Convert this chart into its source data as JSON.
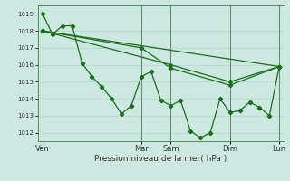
{
  "background_color": "#cce8e0",
  "grid_color": "#b0d8cc",
  "line_color": "#1a6e1a",
  "marker_color": "#1a6e1a",
  "xlabel": "Pression niveau de la mer( hPa )",
  "ylim": [
    1011.5,
    1019.5
  ],
  "yticks": [
    1012,
    1013,
    1014,
    1015,
    1016,
    1017,
    1018,
    1019
  ],
  "xtick_labels": [
    "Ven",
    "Mar",
    "Sam",
    "Dim",
    "Lun"
  ],
  "xtick_positions": [
    0,
    10,
    13,
    19,
    24
  ],
  "total_points": 25,
  "line1_x": [
    0,
    1,
    2,
    3,
    4,
    5,
    6,
    7,
    8,
    9,
    10,
    11,
    12,
    13,
    14,
    15,
    16,
    17,
    18,
    19,
    20,
    21,
    22,
    23,
    24
  ],
  "line1_y": [
    1019.0,
    1017.8,
    1018.3,
    1018.3,
    1016.1,
    1015.3,
    1014.7,
    1014.0,
    1013.1,
    1013.6,
    1015.3,
    1015.6,
    1013.9,
    1013.6,
    1013.9,
    1012.1,
    1011.7,
    1012.0,
    1014.0,
    1013.2,
    1013.3,
    1013.8,
    1013.5,
    1013.0,
    1015.9
  ],
  "line2_x": [
    0,
    24
  ],
  "line2_y": [
    1018.0,
    1015.9
  ],
  "line3_x": [
    0,
    13,
    19,
    24
  ],
  "line3_y": [
    1018.0,
    1016.0,
    1015.0,
    1015.9
  ],
  "line4_x": [
    0,
    10,
    13,
    19,
    24
  ],
  "line4_y": [
    1018.0,
    1017.0,
    1015.8,
    1014.8,
    1015.9
  ]
}
